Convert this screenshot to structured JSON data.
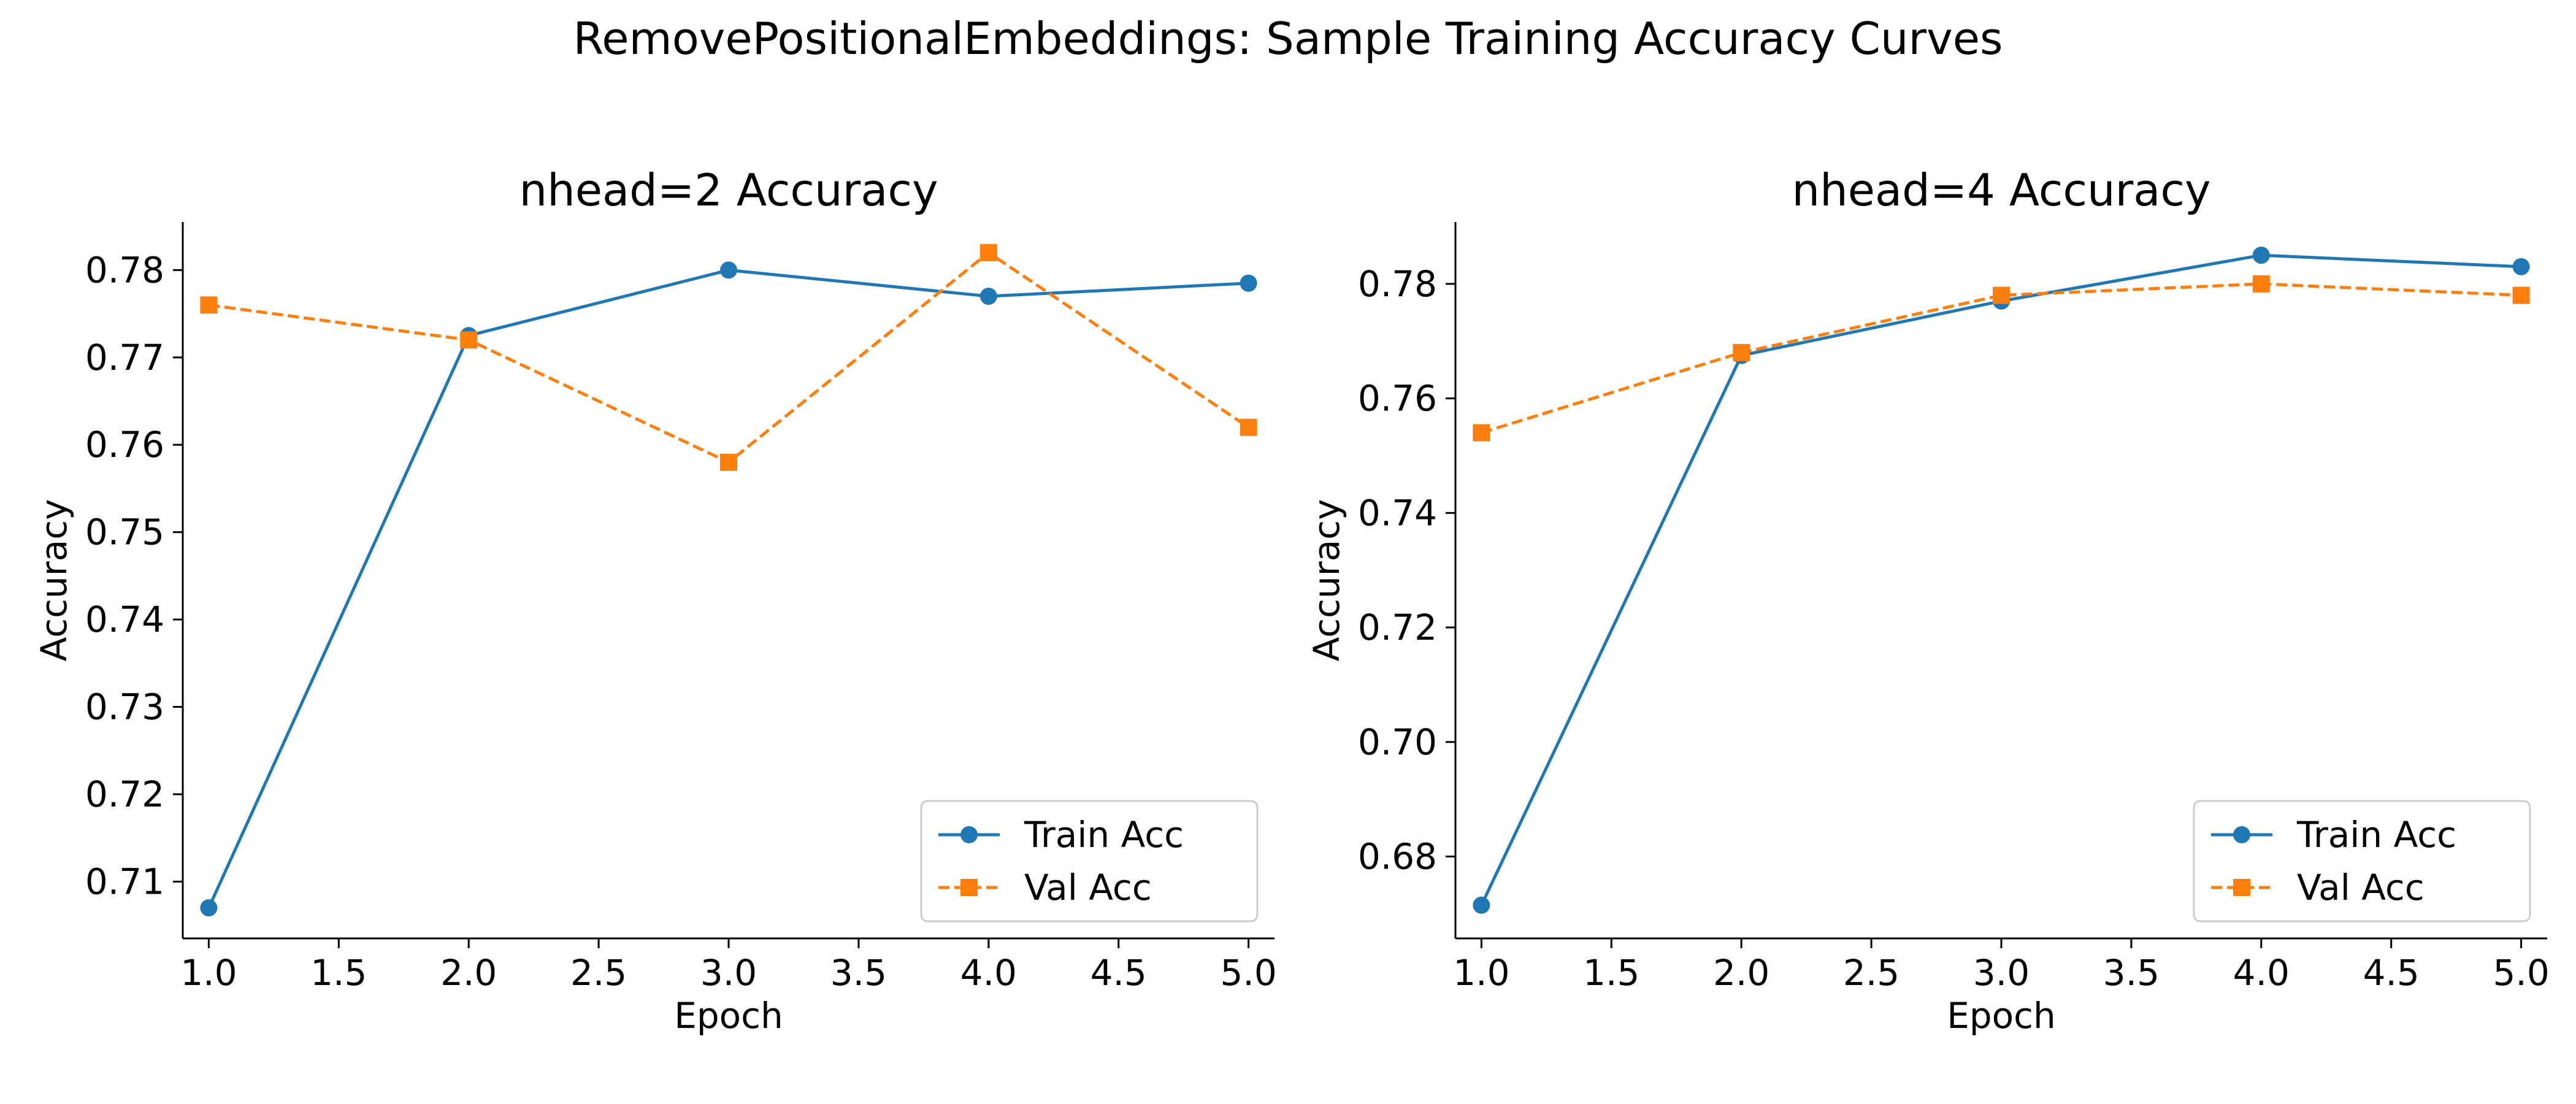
{
  "figure": {
    "title": "RemovePositionalEmbeddings: Sample Training Accuracy Curves"
  },
  "colors": {
    "train": "#1f77b4",
    "val": "#ff7f0e",
    "axis": "#000000",
    "legend_border": "#cccccc"
  },
  "chart_data": [
    {
      "type": "line",
      "title": "nhead=2 Accuracy",
      "xlabel": "Epoch",
      "ylabel": "Accuracy",
      "xlim": [
        0.9,
        5.1
      ],
      "ylim": [
        0.7035,
        0.7855
      ],
      "xticks": [
        1.0,
        1.5,
        2.0,
        2.5,
        3.0,
        3.5,
        4.0,
        4.5,
        5.0
      ],
      "xtick_labels": [
        "1.0",
        "1.5",
        "2.0",
        "2.5",
        "3.0",
        "3.5",
        "4.0",
        "4.5",
        "5.0"
      ],
      "yticks": [
        0.71,
        0.72,
        0.73,
        0.74,
        0.75,
        0.76,
        0.77,
        0.78
      ],
      "ytick_labels": [
        "0.71",
        "0.72",
        "0.73",
        "0.74",
        "0.75",
        "0.76",
        "0.77",
        "0.78"
      ],
      "grid": false,
      "legend_position": "lower-right",
      "x": [
        1,
        2,
        3,
        4,
        5
      ],
      "series": [
        {
          "name": "Train Acc",
          "values": [
            0.707,
            0.7725,
            0.78,
            0.777,
            0.7785
          ],
          "marker": "circle",
          "linestyle": "solid",
          "color": "#1f77b4"
        },
        {
          "name": "Val Acc",
          "values": [
            0.776,
            0.772,
            0.758,
            0.782,
            0.762
          ],
          "marker": "square",
          "linestyle": "dashed",
          "color": "#ff7f0e"
        }
      ]
    },
    {
      "type": "line",
      "title": "nhead=4 Accuracy",
      "xlabel": "Epoch",
      "ylabel": "Accuracy",
      "xlim": [
        0.9,
        5.1
      ],
      "ylim": [
        0.6657,
        0.7908
      ],
      "xticks": [
        1.0,
        1.5,
        2.0,
        2.5,
        3.0,
        3.5,
        4.0,
        4.5,
        5.0
      ],
      "xtick_labels": [
        "1.0",
        "1.5",
        "2.0",
        "2.5",
        "3.0",
        "3.5",
        "4.0",
        "4.5",
        "5.0"
      ],
      "yticks": [
        0.68,
        0.7,
        0.72,
        0.74,
        0.76,
        0.78
      ],
      "ytick_labels": [
        "0.68",
        "0.70",
        "0.72",
        "0.74",
        "0.76",
        "0.78"
      ],
      "grid": false,
      "legend_position": "lower-right",
      "x": [
        1,
        2,
        3,
        4,
        5
      ],
      "series": [
        {
          "name": "Train Acc",
          "values": [
            0.6715,
            0.7675,
            0.777,
            0.785,
            0.783
          ],
          "marker": "circle",
          "linestyle": "solid",
          "color": "#1f77b4"
        },
        {
          "name": "Val Acc",
          "values": [
            0.754,
            0.768,
            0.778,
            0.78,
            0.778
          ],
          "marker": "square",
          "linestyle": "dashed",
          "color": "#ff7f0e"
        }
      ]
    }
  ]
}
